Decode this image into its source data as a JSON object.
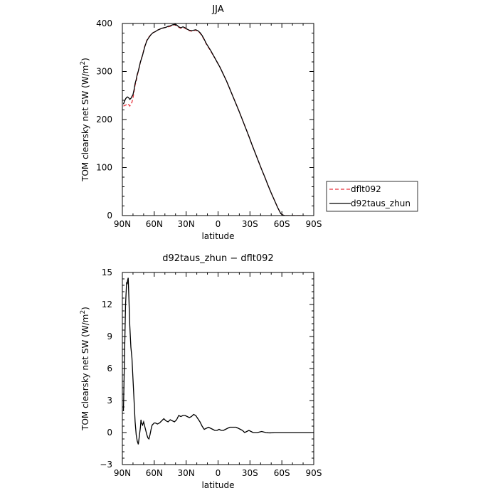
{
  "chart_data": [
    {
      "type": "line",
      "title": "JJA",
      "xlabel": "latitude",
      "ylabel": "TOM clearsky net SW (W/m",
      "ylabel_sup": "2",
      "ylabel_close": ")",
      "xlim": [
        90,
        -90
      ],
      "ylim": [
        0,
        400
      ],
      "xticks": [
        {
          "value": 90,
          "label": "90N"
        },
        {
          "value": 60,
          "label": "60N"
        },
        {
          "value": 30,
          "label": "30N"
        },
        {
          "value": 0,
          "label": "0"
        },
        {
          "value": -30,
          "label": "30S"
        },
        {
          "value": -60,
          "label": "60S"
        },
        {
          "value": -90,
          "label": "90S"
        }
      ],
      "yticks": [
        {
          "value": 0,
          "label": "0"
        },
        {
          "value": 100,
          "label": "100"
        },
        {
          "value": 200,
          "label": "200"
        },
        {
          "value": 300,
          "label": "300"
        },
        {
          "value": 400,
          "label": "400"
        }
      ],
      "grid": false,
      "legend_position": "right",
      "series": [
        {
          "name": "dflt092",
          "color": "#e8323c",
          "dash": true,
          "x": [
            89,
            88,
            87,
            86,
            85,
            84,
            83,
            82,
            81,
            80,
            79,
            78,
            77,
            76,
            75,
            73,
            71,
            69,
            67,
            65,
            63,
            61,
            59,
            57,
            55,
            53,
            51,
            49,
            47,
            45,
            43,
            41,
            39,
            37,
            35,
            33,
            31,
            29,
            27,
            25,
            23,
            21,
            19,
            17,
            15,
            13,
            11,
            9,
            7,
            5,
            3,
            1,
            -2,
            -5,
            -8,
            -11,
            -14,
            -17,
            -20,
            -23,
            -26,
            -29,
            -32,
            -35,
            -38,
            -41,
            -44,
            -47,
            -50,
            -53,
            -56,
            -59,
            -61,
            -63,
            -65,
            -67,
            -69,
            -71,
            -73,
            -75,
            -77,
            -79,
            -81
          ],
          "y": [
            228,
            229,
            230,
            231,
            233,
            231,
            228,
            232,
            236,
            245,
            258,
            272,
            280,
            292,
            300,
            320,
            335,
            352,
            365,
            372,
            377,
            381,
            383,
            386,
            388,
            389,
            391,
            392,
            393,
            394,
            396,
            397,
            396,
            392,
            390,
            392,
            390,
            387,
            385,
            384,
            385,
            386,
            384,
            380,
            374,
            366,
            357,
            350,
            343,
            335,
            328,
            320,
            308,
            294,
            280,
            264,
            248,
            232,
            216,
            199,
            182,
            165,
            147,
            130,
            113,
            96,
            80,
            63,
            47,
            32,
            17,
            4,
            1,
            0,
            0,
            0,
            0,
            0,
            0,
            0,
            0,
            0,
            0
          ]
        },
        {
          "name": "d92taus_zhun",
          "color": "#000000",
          "dash": false,
          "x": [
            89,
            88,
            87,
            86,
            85,
            84,
            83,
            82,
            81,
            80,
            79,
            78,
            77,
            76,
            75,
            73,
            71,
            69,
            67,
            65,
            63,
            61,
            59,
            57,
            55,
            53,
            51,
            49,
            47,
            45,
            43,
            41,
            39,
            37,
            35,
            33,
            31,
            29,
            27,
            25,
            23,
            21,
            19,
            17,
            15,
            13,
            11,
            9,
            7,
            5,
            3,
            1,
            -2,
            -5,
            -8,
            -11,
            -14,
            -17,
            -20,
            -23,
            -26,
            -29,
            -32,
            -35,
            -38,
            -41,
            -44,
            -47,
            -50,
            -53,
            -56,
            -59,
            -61,
            -63,
            -65,
            -67,
            -69,
            -71,
            -73,
            -75,
            -77,
            -79,
            -81
          ],
          "y": [
            232,
            238,
            243,
            246,
            247,
            245,
            242,
            244,
            248,
            252,
            262,
            275,
            283,
            294,
            301,
            320,
            334,
            351,
            364,
            371,
            377,
            381,
            383,
            386,
            388,
            390,
            391,
            392,
            394,
            395,
            397,
            398,
            397,
            393,
            391,
            393,
            391,
            388,
            386,
            385,
            386,
            387,
            385,
            381,
            375,
            367,
            358,
            351,
            344,
            336,
            328,
            320,
            308,
            294,
            280,
            264,
            248,
            232,
            216,
            199,
            182,
            165,
            147,
            130,
            113,
            96,
            80,
            63,
            47,
            32,
            17,
            4,
            1,
            0,
            0,
            0,
            0,
            0,
            0,
            0,
            0,
            0,
            0
          ]
        }
      ]
    },
    {
      "type": "line",
      "title": "d92taus_zhun − dflt092",
      "xlabel": "latitude",
      "ylabel": "TOM clearsky net SW (W/m",
      "ylabel_sup": "2",
      "ylabel_close": ")",
      "xlim": [
        90,
        -90
      ],
      "ylim": [
        -3,
        15
      ],
      "xticks": [
        {
          "value": 90,
          "label": "90N"
        },
        {
          "value": 60,
          "label": "60N"
        },
        {
          "value": 30,
          "label": "30N"
        },
        {
          "value": 0,
          "label": "0"
        },
        {
          "value": -30,
          "label": "30S"
        },
        {
          "value": -60,
          "label": "60S"
        },
        {
          "value": -90,
          "label": "90S"
        }
      ],
      "yticks": [
        {
          "value": -3,
          "label": "−3"
        },
        {
          "value": 0,
          "label": "0"
        },
        {
          "value": 3,
          "label": "3"
        },
        {
          "value": 6,
          "label": "6"
        },
        {
          "value": 9,
          "label": "9"
        },
        {
          "value": 12,
          "label": "12"
        },
        {
          "value": 15,
          "label": "15"
        }
      ],
      "grid": false,
      "series": [
        {
          "color": "#000000",
          "dash": false,
          "x": [
            89,
            88,
            87,
            86,
            85.5,
            85,
            84.5,
            84,
            83,
            82,
            81,
            80,
            79,
            78,
            77,
            76,
            75,
            74,
            73,
            72.5,
            72,
            71,
            70,
            69,
            68,
            67,
            66,
            65,
            64,
            63,
            62,
            61,
            60,
            59,
            57,
            55,
            53,
            51,
            49,
            47,
            45,
            43,
            41,
            39,
            37,
            35,
            33,
            31,
            29,
            27,
            25,
            23,
            21,
            19,
            17,
            15,
            13,
            11,
            9,
            7,
            5,
            3,
            1,
            -1,
            -3,
            -5,
            -7,
            -9,
            -11,
            -13,
            -15,
            -17,
            -19,
            -21,
            -23,
            -25,
            -27,
            -29,
            -31,
            -33,
            -35,
            -37,
            -39,
            -41,
            -43,
            -45,
            -47,
            -49,
            -51,
            -53,
            -55,
            -57,
            -59,
            -61,
            -63,
            -65,
            -70,
            -75,
            -80,
            -85,
            -90
          ],
          "y": [
            2,
            7,
            12,
            14.1,
            13.9,
            14.3,
            14.5,
            13,
            10,
            8,
            7,
            5,
            3,
            1,
            -0.2,
            -0.8,
            -1.1,
            -0.3,
            0.5,
            1.2,
            0.9,
            0.7,
            1.0,
            0.6,
            0.2,
            -0.2,
            -0.5,
            -0.6,
            -0.2,
            0.3,
            0.7,
            0.8,
            0.9,
            0.9,
            0.8,
            0.9,
            1.1,
            1.3,
            1.1,
            1.0,
            1.2,
            1.1,
            1.0,
            1.2,
            1.6,
            1.5,
            1.6,
            1.6,
            1.5,
            1.4,
            1.5,
            1.7,
            1.6,
            1.3,
            1.0,
            0.6,
            0.3,
            0.4,
            0.5,
            0.4,
            0.3,
            0.2,
            0.2,
            0.3,
            0.2,
            0.2,
            0.3,
            0.4,
            0.5,
            0.5,
            0.5,
            0.5,
            0.4,
            0.3,
            0.2,
            0.0,
            0.1,
            0.2,
            0.1,
            0.0,
            0.0,
            0.0,
            0.05,
            0.1,
            0.05,
            0.0,
            -0.02,
            -0.03,
            -0.02,
            0.0,
            0.0,
            0.0,
            0.0,
            0.0,
            0.0,
            0.0,
            0.0,
            0.0,
            0.0,
            0.0,
            0.0
          ]
        }
      ]
    }
  ]
}
